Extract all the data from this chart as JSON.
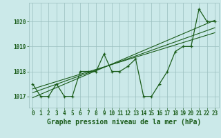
{
  "title": "Graphe pression niveau de la mer (hPa)",
  "x_labels": [
    "0",
    "1",
    "2",
    "3",
    "4",
    "5",
    "6",
    "7",
    "8",
    "9",
    "10",
    "11",
    "12",
    "13",
    "14",
    "15",
    "16",
    "17",
    "18",
    "19",
    "20",
    "21",
    "22",
    "23"
  ],
  "pressure_data": [
    1017.5,
    1017.0,
    1017.0,
    1017.5,
    1017.0,
    1017.0,
    1018.0,
    1018.0,
    1018.0,
    1018.7,
    1018.0,
    1018.0,
    1018.2,
    1018.5,
    1017.0,
    1017.0,
    1017.5,
    1018.0,
    1018.8,
    1019.0,
    1019.0,
    1020.5,
    1020.0,
    1020.0
  ],
  "trend_line": [
    [
      0,
      1016.95
    ],
    [
      23,
      1020.05
    ]
  ],
  "trend_line2": [
    [
      0,
      1017.15
    ],
    [
      23,
      1019.75
    ]
  ],
  "trend_line3": [
    [
      0,
      1017.3
    ],
    [
      23,
      1019.55
    ]
  ],
  "ylim": [
    1016.55,
    1020.75
  ],
  "yticks": [
    1017,
    1018,
    1019,
    1020
  ],
  "bg_color": "#cbe9e9",
  "plot_color": "#1a5c1a",
  "grid_color": "#9abfbf",
  "title_fontsize": 7.0,
  "tick_fontsize": 5.5
}
